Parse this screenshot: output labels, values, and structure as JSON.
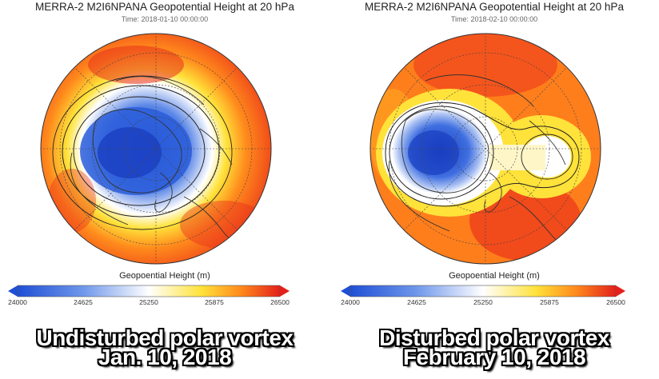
{
  "left": {
    "title": "MERRA-2 M2I6NPANA Geopotential Height at 20 hPa",
    "time": "Time: 2018-01-10 00:00:00",
    "colorbar_title": "Geopoential Height (m)",
    "ticks": [
      "24000",
      "24625",
      "25250",
      "25875",
      "26500"
    ],
    "caption_line1": "Undisturbed polar vortex",
    "caption_line2": "Jan. 10, 2018"
  },
  "right": {
    "title": "MERRA-2 M2I6NPANA Geopotential Height at 20 hPa",
    "time": "Time: 2018-02-10 00:00:00",
    "colorbar_title": "Geopoential Height (m)",
    "ticks": [
      "24000",
      "24625",
      "25250",
      "25875",
      "26500"
    ],
    "caption_line1": "Disturbed polar vortex",
    "caption_line2": "February 10, 2018"
  },
  "colors": {
    "low": "#1f4fd6",
    "mid": "#ffffff",
    "yellow": "#ffe23a",
    "orange": "#ff8a1c",
    "high": "#e3201b"
  }
}
